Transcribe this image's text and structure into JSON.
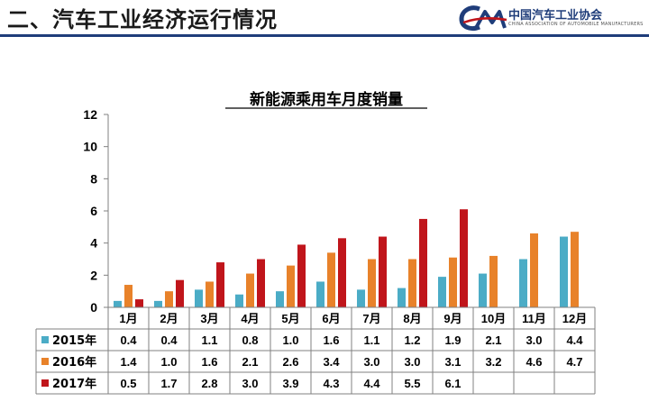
{
  "header": {
    "title": "二、汽车工业经济运行情况",
    "logo_cn": "中国汽车工业协会",
    "logo_en": "CHINA ASSOCIATION OF AUTOMOBILE MANUFACTURERS"
  },
  "chart_data": {
    "type": "bar",
    "title": "新能源乘用车月度销量",
    "xlabel": "",
    "ylabel": "",
    "ylim": [
      0,
      12
    ],
    "yticks": [
      0,
      2,
      4,
      6,
      8,
      10,
      12
    ],
    "grid": false,
    "legend": "data-table-left",
    "categories": [
      "1月",
      "2月",
      "3月",
      "4月",
      "5月",
      "6月",
      "7月",
      "8月",
      "9月",
      "10月",
      "11月",
      "12月"
    ],
    "series": [
      {
        "name": "2015年",
        "color": "#4bacc6",
        "values": [
          0.4,
          0.4,
          1.1,
          0.8,
          1.0,
          1.6,
          1.1,
          1.2,
          1.9,
          2.1,
          3.0,
          4.4
        ],
        "labels": [
          "0.4",
          "0.4",
          "1.1",
          "0.8",
          "1.0",
          "1.6",
          "1.1",
          "1.2",
          "1.9",
          "2.1",
          "3.0",
          "4.4"
        ]
      },
      {
        "name": "2016年",
        "color": "#e8822a",
        "values": [
          1.4,
          1.0,
          1.6,
          2.1,
          2.6,
          3.4,
          3.0,
          3.0,
          3.1,
          3.2,
          4.6,
          4.7
        ],
        "labels": [
          "1.4",
          "1.0",
          "1.6",
          "2.1",
          "2.6",
          "3.4",
          "3.0",
          "3.0",
          "3.1",
          "3.2",
          "4.6",
          "4.7"
        ]
      },
      {
        "name": "2017年",
        "color": "#c0151b",
        "values": [
          0.5,
          1.7,
          2.8,
          3.0,
          3.9,
          4.3,
          4.4,
          5.5,
          6.1,
          null,
          null,
          null
        ],
        "labels": [
          "0.5",
          "1.7",
          "2.8",
          "3.0",
          "3.9",
          "4.3",
          "4.4",
          "5.5",
          "6.1",
          "",
          "",
          ""
        ]
      }
    ]
  }
}
